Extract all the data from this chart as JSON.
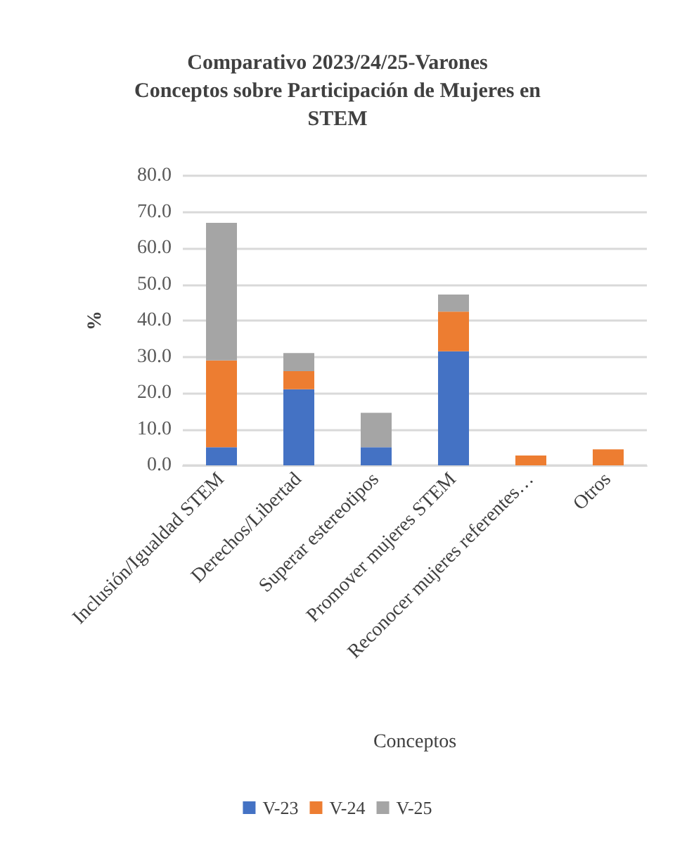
{
  "chart_data": {
    "type": "bar",
    "title": "Comparativo 2023/24/25-Varones\nConceptos sobre Participación de Mujeres en\nSTEM",
    "xlabel": "Conceptos",
    "ylabel": "%",
    "categories": [
      "Inclusión/Igualdad STEM",
      "Derechos/Libertad",
      "Superar estereotipos",
      "Promover mujeres STEM",
      "Reconocer mujeres referentes…",
      "Otros"
    ],
    "stacked": true,
    "series": [
      {
        "name": "V-23",
        "color": "#4472c4",
        "values": [
          5,
          21,
          5,
          31.5,
          null,
          null
        ]
      },
      {
        "name": "V-24",
        "color": "#ed7d31",
        "values": [
          24,
          5,
          null,
          11,
          2.7,
          4.4
        ]
      },
      {
        "name": "V-25",
        "color": "#a5a5a5",
        "values": [
          38,
          5,
          9.5,
          4.7,
          null,
          null
        ]
      }
    ],
    "ylim": [
      0,
      80
    ],
    "yticks": [
      {
        "value": 0,
        "label": "0.0"
      },
      {
        "value": 10,
        "label": "10.0"
      },
      {
        "value": 20,
        "label": "20.0"
      },
      {
        "value": 30,
        "label": "30.0"
      },
      {
        "value": 40,
        "label": "40.0"
      },
      {
        "value": 50,
        "label": "50.0"
      },
      {
        "value": 60,
        "label": "60.0"
      },
      {
        "value": 70,
        "label": "70.0"
      },
      {
        "value": 80,
        "label": "80.0"
      }
    ],
    "grid": "y",
    "legend": "bottom"
  }
}
